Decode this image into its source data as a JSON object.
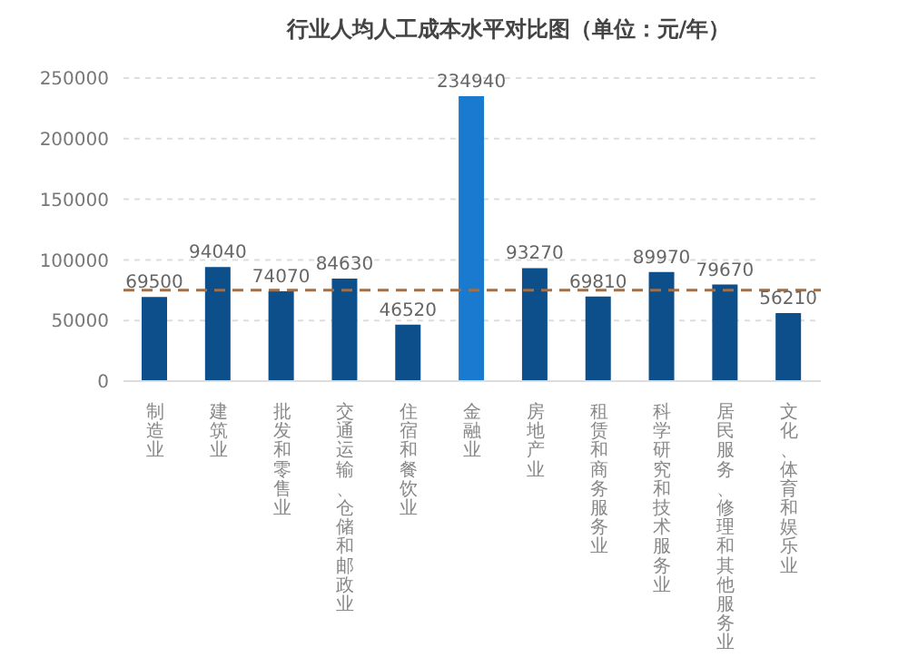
{
  "chart_data": {
    "type": "bar",
    "title": "行业人均人工成本水平对比图（单位：元/年）",
    "categories": [
      "制造业",
      "建筑业",
      "批发和零售业",
      "交通运输、仓储和邮政业",
      "住宿和餐饮业",
      "金融业",
      "房地产业",
      "租赁和商务服务业",
      "科学研究和技术服务业",
      "居民服务、修理和其他服务业",
      "文化、体育和娱乐业"
    ],
    "values": [
      69500,
      94040,
      74070,
      84630,
      46520,
      234940,
      93270,
      69810,
      89970,
      79670,
      56210
    ],
    "colors": [
      "#0d4f8b",
      "#0d4f8b",
      "#0d4f8b",
      "#0d4f8b",
      "#0d4f8b",
      "#1a7ad0",
      "#0d4f8b",
      "#0d4f8b",
      "#0d4f8b",
      "#0d4f8b",
      "#0d4f8b"
    ],
    "ylim": [
      0,
      250000
    ],
    "yticks": [
      0,
      50000,
      100000,
      150000,
      200000,
      250000
    ],
    "grid": "y",
    "data_labels": true,
    "ref_lines": [
      {
        "axis": "y",
        "value": 75000,
        "color": "#a0704a",
        "line_style": "dashed"
      }
    ]
  }
}
